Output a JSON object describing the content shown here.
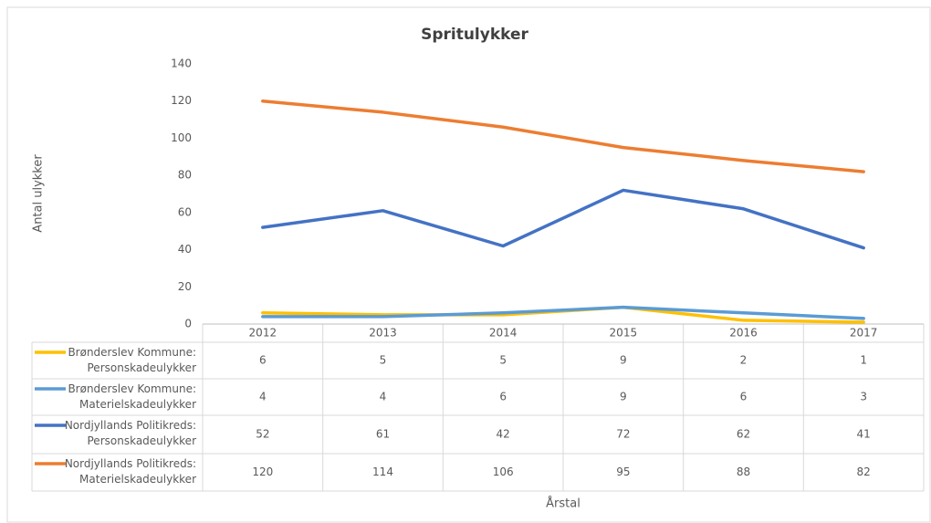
{
  "chart_data": {
    "type": "line",
    "title": "Spritulykker",
    "y_label": "Antal ulykker",
    "x_label": "Årstal",
    "categories": [
      "2012",
      "2013",
      "2014",
      "2015",
      "2016",
      "2017"
    ],
    "series": [
      {
        "name": "Brønderslev Kommune: Personskadeulykker",
        "color": "#ffc000",
        "values": [
          6,
          5,
          5,
          9,
          2,
          1
        ]
      },
      {
        "name": "Brønderslev Kommune: Materielskadeulykker",
        "color": "#5b9bd5",
        "values": [
          4,
          4,
          6,
          9,
          6,
          3
        ]
      },
      {
        "name": "Nordjyllands Politikreds: Personskadeulykker",
        "color": "#4472c4",
        "values": [
          52,
          61,
          42,
          72,
          62,
          41
        ]
      },
      {
        "name": "Nordjyllands Politikreds: Materielskadeulykker",
        "color": "#ed7d31",
        "values": [
          120,
          114,
          106,
          95,
          88,
          82
        ]
      }
    ],
    "ylim": [
      0,
      140
    ],
    "yticks": [
      0,
      20,
      40,
      60,
      80,
      100,
      120,
      140
    ],
    "grid": false,
    "legend": "data-table"
  }
}
